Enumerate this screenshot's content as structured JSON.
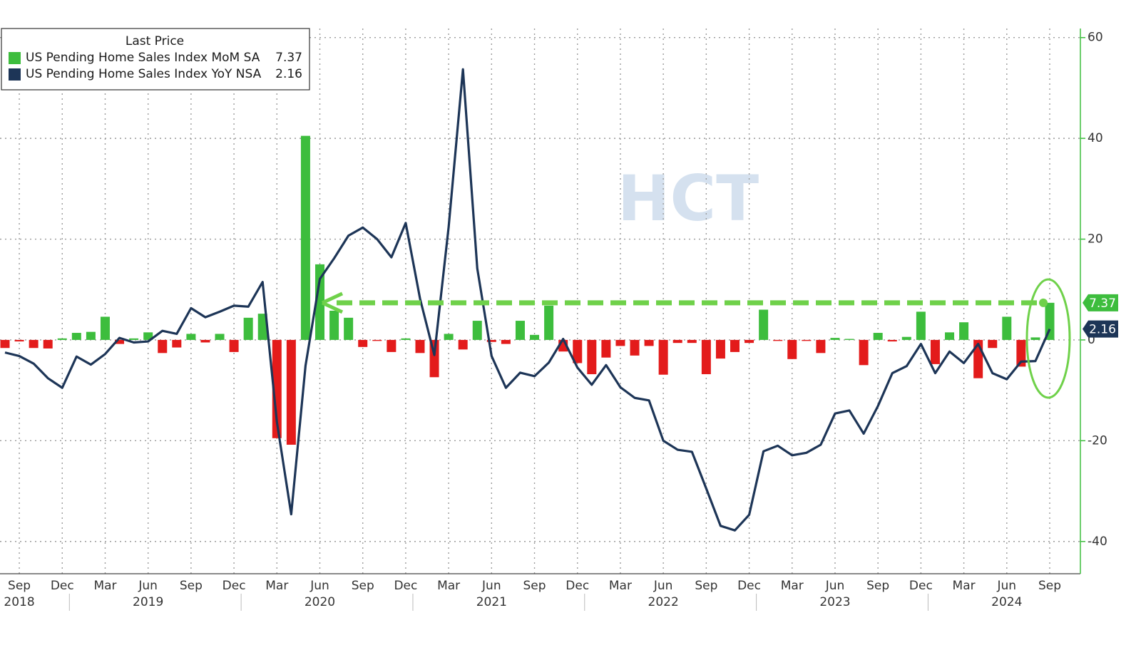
{
  "chart_data": {
    "type": "combo",
    "watermark": "HCT",
    "legend_title": "Last Price",
    "legend": "upper left",
    "grid": true,
    "categories": [
      null,
      "Sep",
      null,
      null,
      "Dec",
      null,
      null,
      "Mar",
      null,
      null,
      "Jun",
      null,
      null,
      "Sep",
      null,
      null,
      "Dec",
      null,
      null,
      "Mar",
      null,
      null,
      "Jun",
      null,
      null,
      "Sep",
      null,
      null,
      "Dec",
      null,
      null,
      "Mar",
      null,
      null,
      "Jun",
      null,
      null,
      "Sep",
      null,
      null,
      "Dec",
      null,
      null,
      "Mar",
      null,
      null,
      "Jun",
      null,
      null,
      "Sep",
      null,
      null,
      "Dec",
      null,
      null,
      "Mar",
      null,
      null,
      "Jun",
      null,
      null,
      "Sep",
      null,
      null,
      "Dec",
      null,
      null,
      "Mar",
      null,
      null,
      "Jun",
      null,
      null,
      "Sep"
    ],
    "years": [
      null,
      "2018",
      null,
      null,
      null,
      null,
      null,
      null,
      null,
      null,
      "2019",
      null,
      null,
      null,
      null,
      null,
      null,
      null,
      null,
      null,
      null,
      null,
      "2020",
      null,
      null,
      null,
      null,
      null,
      null,
      null,
      null,
      null,
      null,
      null,
      "2021",
      null,
      null,
      null,
      null,
      null,
      null,
      null,
      null,
      null,
      null,
      null,
      "2022",
      null,
      null,
      null,
      null,
      null,
      null,
      null,
      null,
      null,
      null,
      null,
      "2023",
      null,
      null,
      null,
      null,
      null,
      null,
      null,
      null,
      null,
      null,
      null,
      "2024",
      null,
      null,
      null
    ],
    "ylim": [
      -46.4,
      61.8
    ],
    "yticks": [
      60,
      40,
      20,
      0,
      -20,
      -40
    ],
    "series": [
      {
        "name": "US Pending Home Sales Index MoM SA",
        "type": "bar",
        "color": "#3dbd3d",
        "negative_color": "#e31b1b",
        "values": [
          -1.6,
          -0.3,
          -1.6,
          -1.7,
          0.3,
          1.4,
          1.6,
          4.6,
          -0.8,
          0.3,
          1.5,
          -2.6,
          -1.5,
          1.2,
          -0.5,
          1.2,
          -2.4,
          4.4,
          5.2,
          -19.5,
          -20.8,
          40.5,
          15.0,
          5.8,
          4.4,
          -1.4,
          -0.2,
          -2.4,
          0.3,
          -2.6,
          -7.4,
          1.2,
          -1.9,
          3.8,
          -0.4,
          -0.8,
          3.8,
          1.0,
          6.8,
          -2.3,
          -4.6,
          -6.8,
          -3.5,
          -1.2,
          -3.1,
          -1.2,
          -6.9,
          -0.6,
          -0.6,
          -6.8,
          -3.7,
          -2.4,
          -0.6,
          6.0,
          -0.2,
          -3.8,
          -0.2,
          -2.6,
          0.4,
          0.2,
          -5.0,
          1.4,
          -0.3,
          0.6,
          5.6,
          -4.8,
          1.5,
          3.5,
          -7.6,
          -1.6,
          4.6,
          -5.3,
          0.5,
          7.37
        ]
      },
      {
        "name": "US Pending Home Sales Index YoY NSA",
        "type": "line",
        "color": "#1d3557",
        "values": [
          -2.5,
          -3.2,
          -4.7,
          -7.6,
          -9.5,
          -3.3,
          -4.9,
          -2.8,
          0.4,
          -0.5,
          -0.3,
          1.8,
          1.2,
          6.3,
          4.5,
          5.6,
          6.8,
          6.6,
          11.5,
          -16.3,
          -34.6,
          -5.1,
          12.1,
          16.2,
          20.7,
          22.3,
          20.0,
          16.4,
          23.2,
          8.2,
          -3.0,
          22.4,
          53.7,
          14.2,
          -3.2,
          -9.5,
          -6.5,
          -7.2,
          -4.5,
          0.2,
          -5.5,
          -8.9,
          -5.0,
          -9.4,
          -11.5,
          -12.0,
          -20.0,
          -21.8,
          -22.2,
          -29.5,
          -36.9,
          -37.8,
          -34.7,
          -22.1,
          -21.0,
          -22.9,
          -22.4,
          -20.8,
          -14.6,
          -14.0,
          -18.6,
          -13.1,
          -6.6,
          -5.2,
          -0.8,
          -6.6,
          -2.3,
          -4.6,
          -0.8,
          -6.6,
          -7.8,
          -4.3,
          -4.2,
          2.16
        ]
      }
    ]
  }
}
